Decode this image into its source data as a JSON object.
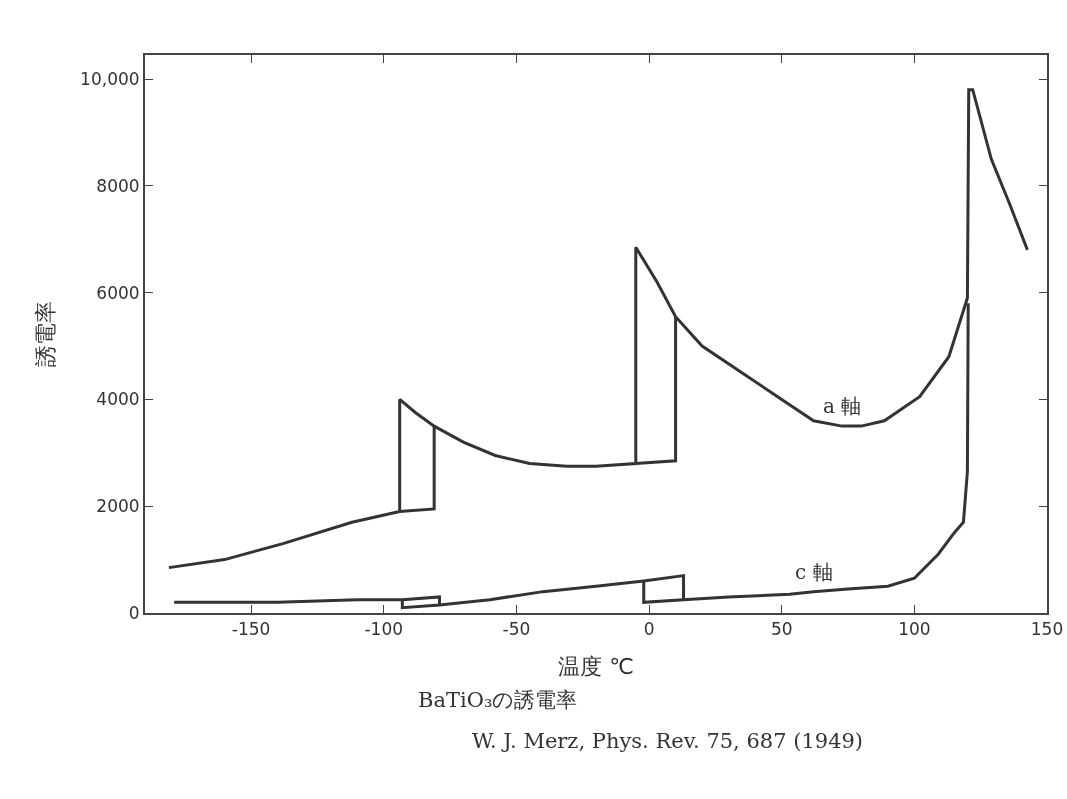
{
  "chart_data": {
    "type": "line",
    "xlabel": "温度 ℃",
    "ylabel": "誘電率",
    "xlim": [
      -190,
      150
    ],
    "xticks": [
      -150,
      -100,
      -50,
      0,
      50,
      100,
      150
    ],
    "ylim": [
      0,
      10450
    ],
    "yticks": [
      0,
      2000,
      4000,
      6000,
      8000,
      {
        "value": 10000,
        "label": "10,000"
      }
    ],
    "grid": false,
    "legend": false,
    "marker": "none",
    "line_style": "solid",
    "series": [
      {
        "name": "a 軸",
        "color": "#333333",
        "x": [
          -181,
          -160,
          -138,
          -112,
          -94,
          -94,
          -88,
          -81,
          -70,
          -58,
          -45,
          -31,
          -20,
          -5,
          -5,
          3,
          10,
          20,
          35,
          50,
          62,
          72.7,
          80,
          88.7,
          102,
          113,
          120,
          120.5,
          122,
          129,
          136,
          142.6,
          null,
          -94,
          -81,
          -81,
          null,
          -5,
          10,
          10
        ],
        "values": [
          850,
          1000,
          1300,
          1700,
          1900,
          4000,
          3750,
          3500,
          3200,
          2950,
          2800,
          2750,
          2750,
          2800,
          6850,
          6200,
          5550,
          5000,
          4500,
          4000,
          3600,
          3500,
          3500,
          3600,
          4050,
          4800,
          5900,
          9800,
          9800,
          8500,
          7650,
          6800,
          null,
          1900,
          1950,
          3500,
          null,
          2800,
          2850,
          5550
        ]
      },
      {
        "name": "c 軸",
        "color": "#333333",
        "x": [
          -179,
          -140,
          -110,
          -93,
          -79,
          -79,
          null,
          -93,
          -93,
          -79,
          -60,
          -40,
          -20,
          -2,
          13,
          13,
          null,
          -2,
          -2,
          13,
          30,
          53,
          62,
          75,
          90,
          100,
          109,
          115,
          118.5,
          120,
          120.3
        ],
        "values": [
          200,
          200,
          250,
          250,
          300,
          150,
          null,
          250,
          100,
          150,
          250,
          400,
          500,
          600,
          700,
          250,
          null,
          600,
          200,
          250,
          300,
          350,
          400,
          450,
          500,
          650,
          1100,
          1500,
          1700,
          2650,
          5800
        ]
      }
    ],
    "annotations": [
      "BaTiO₃の誘電率",
      "W. J. Merz, Phys. Rev. 75, 687 (1949)"
    ]
  }
}
